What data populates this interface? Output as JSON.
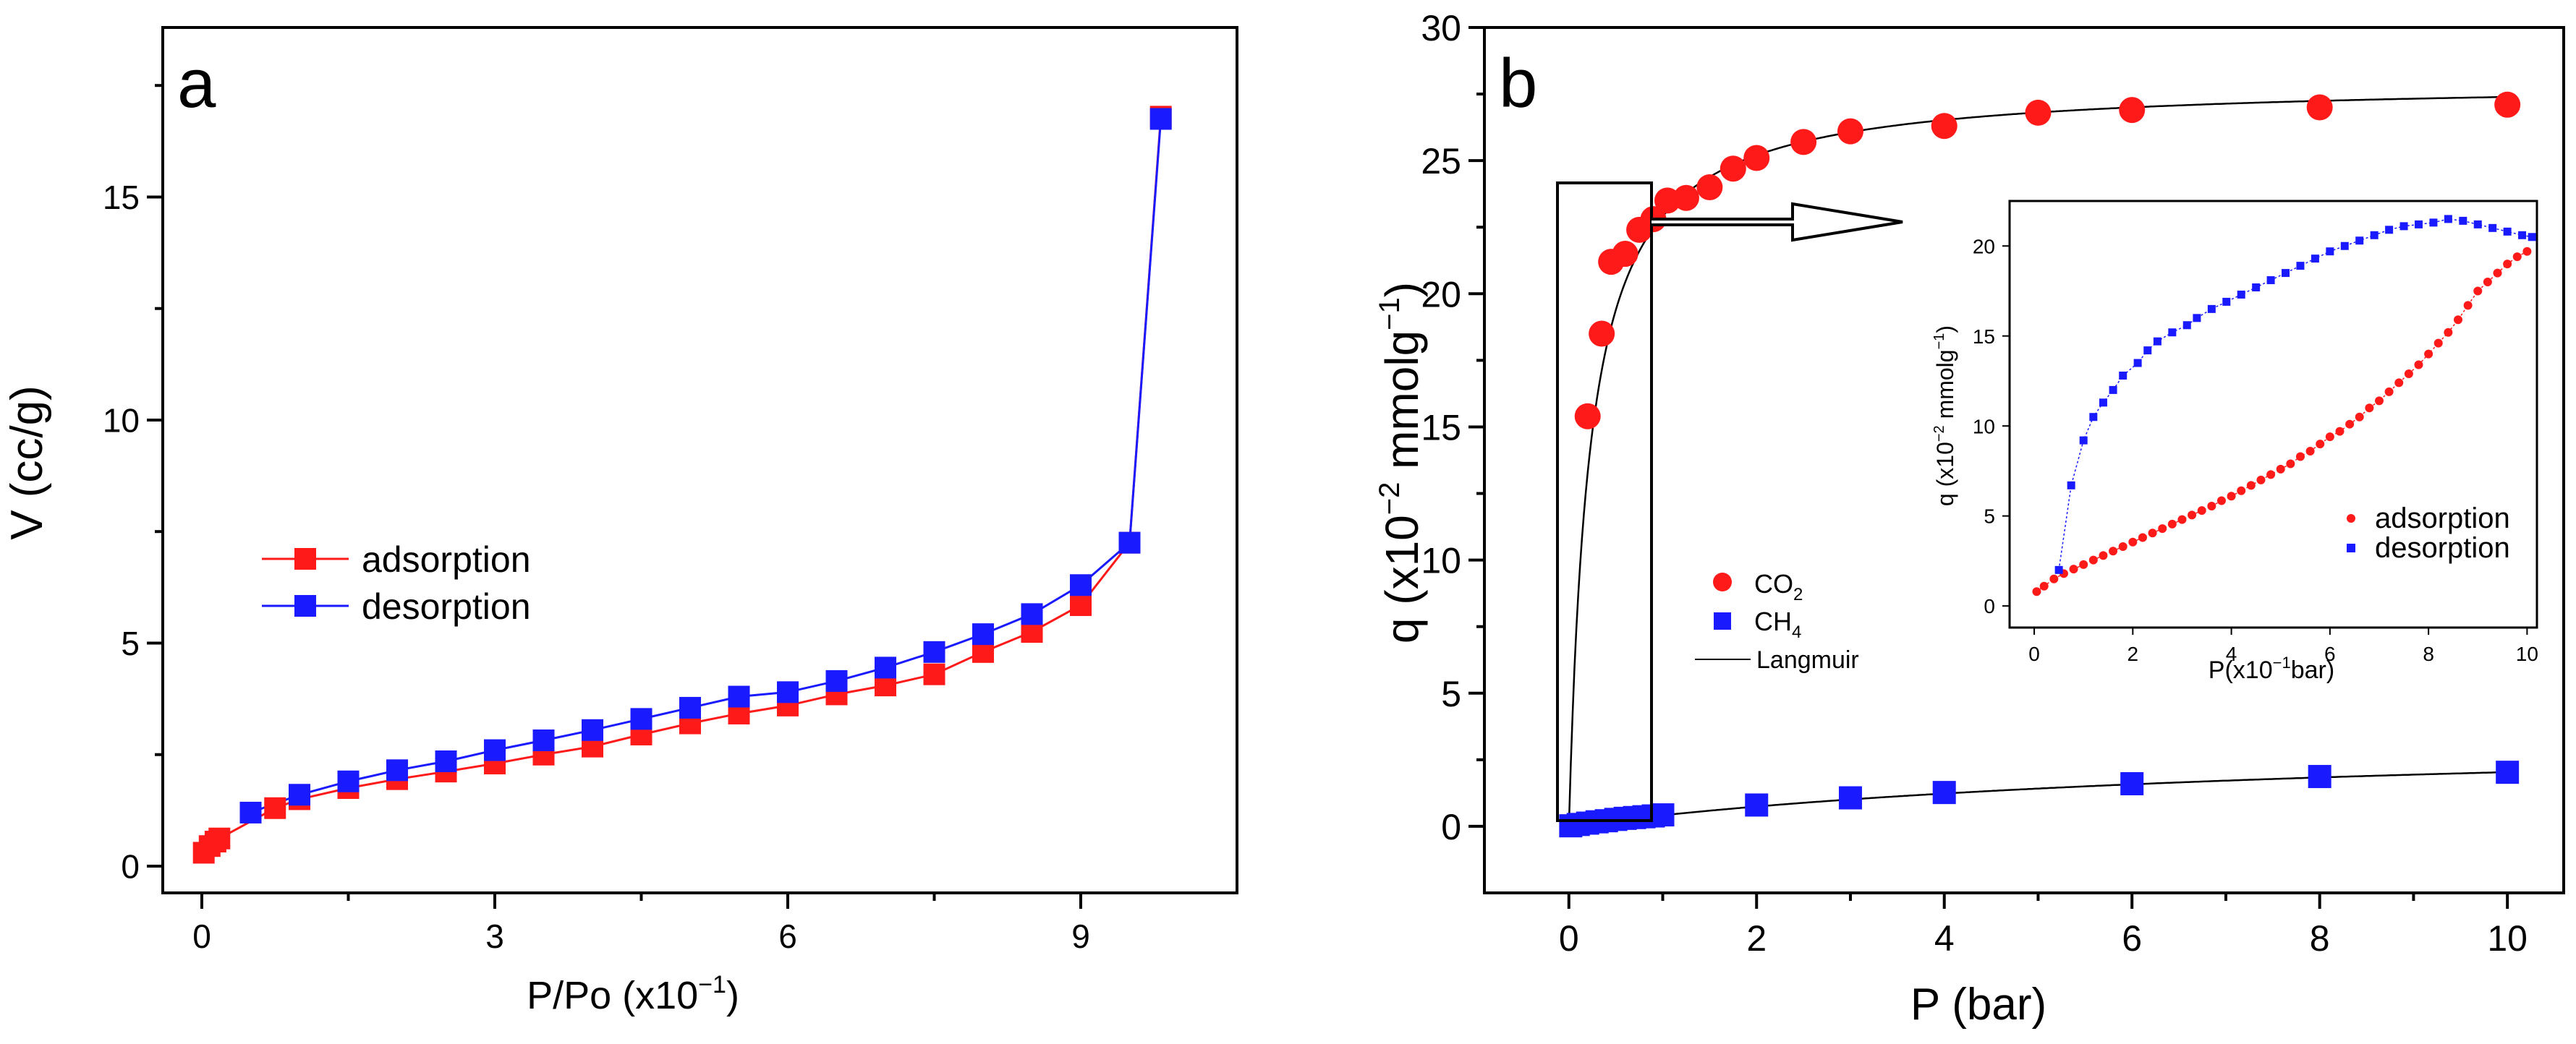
{
  "colors": {
    "red": "#ff1a1a",
    "blue": "#1a1aff",
    "fit": "#000000",
    "axis": "#000000"
  },
  "chart_data": [
    {
      "id": "a",
      "type": "line",
      "panel_label": "a",
      "xlabel": "P/Po (x10",
      "xlabel_sup": "−1",
      "xlabel_end": ")",
      "ylabel": "V (cc/g)",
      "xlim": [
        -0.4,
        10.6
      ],
      "ylim": [
        -0.6,
        18.8
      ],
      "xticks": [
        0,
        3,
        6,
        9
      ],
      "yticks": [
        0,
        5,
        10,
        15
      ],
      "grid": false,
      "legend_position": "center-left",
      "series": [
        {
          "name": "adsorption",
          "color": "#ff1a1a",
          "marker": "square",
          "x": [
            0.02,
            0.08,
            0.14,
            0.18,
            0.75,
            1.0,
            1.5,
            2.0,
            2.5,
            3.0,
            3.5,
            4.0,
            4.5,
            5.0,
            5.5,
            6.0,
            6.5,
            7.0,
            7.5,
            8.0,
            8.5,
            9.0,
            9.5,
            9.82
          ],
          "y": [
            0.3,
            0.45,
            0.55,
            0.62,
            1.3,
            1.5,
            1.75,
            1.95,
            2.12,
            2.3,
            2.5,
            2.68,
            2.95,
            3.2,
            3.42,
            3.6,
            3.85,
            4.05,
            4.3,
            4.8,
            5.25,
            5.85,
            7.25,
            16.8
          ]
        },
        {
          "name": "desorption",
          "color": "#1a1aff",
          "marker": "square",
          "x": [
            0.5,
            1.0,
            1.5,
            2.0,
            2.5,
            3.0,
            3.5,
            4.0,
            4.5,
            5.0,
            5.5,
            6.0,
            6.5,
            7.0,
            7.5,
            8.0,
            8.5,
            9.0,
            9.5,
            9.82
          ],
          "y": [
            1.2,
            1.6,
            1.9,
            2.15,
            2.35,
            2.6,
            2.82,
            3.05,
            3.3,
            3.55,
            3.8,
            3.9,
            4.15,
            4.45,
            4.8,
            5.2,
            5.65,
            6.3,
            7.25,
            16.75
          ]
        }
      ]
    },
    {
      "id": "b",
      "type": "scatter",
      "panel_label": "b",
      "xlabel": "P (bar)",
      "ylabel": "q (x10",
      "ylabel_sup": "−2",
      "ylabel_mid": " mmolg",
      "ylabel_sup2": "−1",
      "ylabel_end": ")",
      "xlim": [
        -0.9,
        10.6
      ],
      "ylim": [
        -2.5,
        30
      ],
      "xticks": [
        0,
        2,
        4,
        6,
        8,
        10
      ],
      "yticks": [
        0,
        5,
        10,
        15,
        20,
        25,
        30
      ],
      "grid": false,
      "legend_position": "center",
      "legend": [
        {
          "label": "CO",
          "sub": "2",
          "style": "circle",
          "color": "#ff1a1a"
        },
        {
          "label": "CH",
          "sub": "4",
          "style": "square",
          "color": "#1a1aff"
        },
        {
          "label": "Langmuir",
          "sub": "",
          "style": "line",
          "color": "#000000"
        }
      ],
      "series": [
        {
          "name": "CO2",
          "color": "#ff1a1a",
          "marker": "circle",
          "x": [
            0.2,
            0.35,
            0.45,
            0.6,
            0.75,
            0.9,
            1.05,
            1.25,
            1.5,
            1.75,
            2.0,
            2.5,
            3.0,
            4.0,
            5.0,
            6.0,
            8.0,
            10.0
          ],
          "y": [
            15.4,
            18.5,
            21.2,
            21.5,
            22.4,
            22.8,
            23.5,
            23.6,
            24.0,
            24.7,
            25.1,
            25.7,
            26.1,
            26.3,
            26.8,
            26.9,
            27.0,
            27.1
          ]
        },
        {
          "name": "CH4",
          "color": "#1a1aff",
          "marker": "square",
          "x": [
            0.02,
            0.1,
            0.2,
            0.3,
            0.4,
            0.5,
            0.6,
            0.7,
            0.8,
            0.9,
            1.0,
            2.0,
            3.0,
            4.0,
            6.0,
            8.0,
            10.0
          ],
          "y": [
            0.02,
            0.07,
            0.12,
            0.17,
            0.21,
            0.26,
            0.3,
            0.33,
            0.36,
            0.39,
            0.43,
            0.8,
            1.07,
            1.27,
            1.6,
            1.87,
            2.03
          ]
        },
        {
          "name": "Langmuir",
          "color": "#000000",
          "marker": "line",
          "fits": [
            {
              "qmax": 28.0,
              "b": 4.5
            },
            {
              "qmax": 3.6,
              "b": 0.13
            }
          ]
        }
      ],
      "inset": {
        "type": "scatter",
        "xlabel": "P(x10",
        "xlabel_sup": "−1",
        "xlabel_end": "bar)",
        "ylabel": "q (x10",
        "ylabel_sup": "−2",
        "ylabel_end": " mmolg",
        "ylabel_sup2": "−1",
        "ylabel_close": ")",
        "xlim": [
          -0.5,
          10.2
        ],
        "ylim": [
          -1.2,
          22.5
        ],
        "xticks": [
          0,
          2,
          4,
          6,
          8,
          10
        ],
        "yticks": [
          0,
          5,
          10,
          15,
          20
        ],
        "legend_position": "bottom-right",
        "series": [
          {
            "name": "adsorption",
            "color": "#ff1a1a",
            "marker": "circle",
            "points": [
              [
                0.05,
                0.8
              ],
              [
                0.2,
                1.1
              ],
              [
                0.4,
                1.5
              ],
              [
                0.6,
                1.8
              ],
              [
                0.8,
                2.05
              ],
              [
                1.0,
                2.3
              ],
              [
                1.2,
                2.55
              ],
              [
                1.4,
                2.8
              ],
              [
                1.6,
                3.05
              ],
              [
                1.8,
                3.3
              ],
              [
                2.0,
                3.55
              ],
              [
                2.2,
                3.8
              ],
              [
                2.4,
                4.05
              ],
              [
                2.6,
                4.3
              ],
              [
                2.8,
                4.55
              ],
              [
                3.0,
                4.8
              ],
              [
                3.2,
                5.05
              ],
              [
                3.4,
                5.3
              ],
              [
                3.6,
                5.55
              ],
              [
                3.8,
                5.85
              ],
              [
                4.0,
                6.1
              ],
              [
                4.2,
                6.4
              ],
              [
                4.4,
                6.7
              ],
              [
                4.6,
                7.0
              ],
              [
                4.8,
                7.3
              ],
              [
                5.0,
                7.6
              ],
              [
                5.2,
                7.9
              ],
              [
                5.4,
                8.3
              ],
              [
                5.6,
                8.6
              ],
              [
                5.8,
                9.0
              ],
              [
                6.0,
                9.4
              ],
              [
                6.2,
                9.7
              ],
              [
                6.4,
                10.1
              ],
              [
                6.6,
                10.5
              ],
              [
                6.8,
                11.0
              ],
              [
                7.0,
                11.4
              ],
              [
                7.2,
                11.9
              ],
              [
                7.4,
                12.4
              ],
              [
                7.6,
                12.9
              ],
              [
                7.8,
                13.4
              ],
              [
                8.0,
                14.0
              ],
              [
                8.2,
                14.6
              ],
              [
                8.4,
                15.2
              ],
              [
                8.6,
                15.9
              ],
              [
                8.8,
                16.7
              ],
              [
                9.0,
                17.5
              ],
              [
                9.2,
                18.0
              ],
              [
                9.4,
                18.5
              ],
              [
                9.6,
                19.0
              ],
              [
                9.8,
                19.4
              ],
              [
                10.0,
                19.7
              ]
            ]
          },
          {
            "name": "desorption",
            "color": "#1a1aff",
            "marker": "square",
            "points": [
              [
                0.5,
                2.0
              ],
              [
                0.75,
                6.7
              ],
              [
                1.0,
                9.2
              ],
              [
                1.2,
                10.5
              ],
              [
                1.4,
                11.3
              ],
              [
                1.6,
                12.0
              ],
              [
                1.8,
                12.8
              ],
              [
                2.1,
                13.5
              ],
              [
                2.3,
                14.2
              ],
              [
                2.5,
                14.7
              ],
              [
                2.8,
                15.2
              ],
              [
                3.1,
                15.6
              ],
              [
                3.3,
                16.0
              ],
              [
                3.6,
                16.5
              ],
              [
                3.9,
                16.9
              ],
              [
                4.2,
                17.3
              ],
              [
                4.5,
                17.7
              ],
              [
                4.8,
                18.1
              ],
              [
                5.1,
                18.5
              ],
              [
                5.4,
                18.9
              ],
              [
                5.7,
                19.3
              ],
              [
                6.0,
                19.7
              ],
              [
                6.3,
                20.0
              ],
              [
                6.6,
                20.3
              ],
              [
                6.9,
                20.6
              ],
              [
                7.2,
                20.9
              ],
              [
                7.5,
                21.1
              ],
              [
                7.8,
                21.2
              ],
              [
                8.1,
                21.3
              ],
              [
                8.4,
                21.5
              ],
              [
                8.7,
                21.4
              ],
              [
                9.0,
                21.2
              ],
              [
                9.3,
                21.0
              ],
              [
                9.6,
                20.8
              ],
              [
                9.9,
                20.6
              ],
              [
                10.1,
                20.5
              ]
            ]
          }
        ]
      }
    }
  ]
}
